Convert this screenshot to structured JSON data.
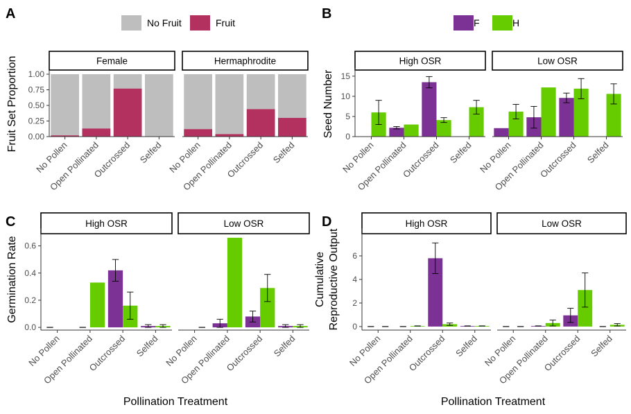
{
  "figure": {
    "panel_tags": [
      "A",
      "B",
      "C",
      "D"
    ],
    "xlabel": "Pollination Treatment"
  },
  "colors": {
    "no_fruit": "#bebebe",
    "fruit": "#b3315e",
    "F": "#7b3294",
    "H": "#66cc00",
    "axis": "#333333",
    "text": "#000000"
  },
  "chart_data": [
    {
      "id": "A",
      "type": "bar",
      "stacked": true,
      "ylabel": "Fruit Set Proportion",
      "ylim": [
        0,
        1
      ],
      "yticks": [
        "0.00",
        "0.25",
        "0.50",
        "0.75",
        "1.00"
      ],
      "ytick_values": [
        0,
        0.25,
        0.5,
        0.75,
        1
      ],
      "legend": {
        "position": "top",
        "entries": [
          {
            "label": "No Fruit",
            "color": "#bebebe"
          },
          {
            "label": "Fruit",
            "color": "#b3315e"
          }
        ]
      },
      "categories": [
        "No Pollen",
        "Open Pollinated",
        "Outcrossed",
        "Selfed"
      ],
      "facets": [
        {
          "label": "Female",
          "fruit": [
            0.02,
            0.13,
            0.77,
            0.0
          ]
        },
        {
          "label": "Hermaphrodite",
          "fruit": [
            0.12,
            0.04,
            0.44,
            0.3
          ]
        }
      ]
    },
    {
      "id": "B",
      "type": "bar",
      "ylabel": "Seed Number",
      "ylim": [
        0,
        16
      ],
      "yticks": [
        "0",
        "5",
        "10",
        "15"
      ],
      "ytick_values": [
        0,
        5,
        10,
        15
      ],
      "legend": {
        "position": "top",
        "entries": [
          {
            "label": "F",
            "color": "#7b3294"
          },
          {
            "label": "H",
            "color": "#66cc00"
          }
        ]
      },
      "categories": [
        "No Pollen",
        "Open Pollinated",
        "Outcrossed",
        "Selfed"
      ],
      "facets": [
        {
          "label": "High OSR",
          "series": [
            {
              "name": "F",
              "values": [
                null,
                2.2,
                13.5,
                null
              ],
              "err": [
                null,
                0.3,
                1.4,
                null
              ]
            },
            {
              "name": "H",
              "values": [
                6.0,
                3.0,
                4.1,
                7.3
              ],
              "err": [
                3.0,
                null,
                0.6,
                1.7
              ]
            }
          ]
        },
        {
          "label": "Low OSR",
          "series": [
            {
              "name": "F",
              "values": [
                2.1,
                4.8,
                9.6,
                null
              ],
              "err": [
                null,
                2.7,
                1.2,
                null
              ]
            },
            {
              "name": "H",
              "values": [
                6.2,
                12.2,
                11.9,
                10.6
              ],
              "err": [
                1.8,
                null,
                2.5,
                2.5
              ]
            }
          ]
        }
      ]
    },
    {
      "id": "C",
      "type": "bar",
      "ylabel": "Germination Rate",
      "ylim": [
        -0.02,
        0.7
      ],
      "yticks": [
        "0.0",
        "0.2",
        "0.4",
        "0.6"
      ],
      "ytick_values": [
        0,
        0.2,
        0.4,
        0.6
      ],
      "categories": [
        "No Pollen",
        "Open Pollinated",
        "Outcrossed",
        "Selfed"
      ],
      "facets": [
        {
          "label": "High OSR",
          "series": [
            {
              "name": "F",
              "values": [
                0,
                0,
                0.42,
                0.01
              ],
              "err": [
                0,
                0,
                0.08,
                0.01
              ]
            },
            {
              "name": "H",
              "values": [
                0,
                0.33,
                0.16,
                0.01
              ],
              "err": [
                null,
                null,
                0.1,
                0.01
              ]
            }
          ]
        },
        {
          "label": "Low OSR",
          "series": [
            {
              "name": "F",
              "values": [
                0,
                0.03,
                0.08,
                0.01
              ],
              "err": [
                null,
                0.03,
                0.04,
                0.01
              ]
            },
            {
              "name": "H",
              "values": [
                0,
                0.66,
                0.29,
                0.01
              ],
              "err": [
                0,
                null,
                0.1,
                0.01
              ]
            }
          ]
        }
      ]
    },
    {
      "id": "D",
      "type": "bar",
      "ylabel": "Cumulative\nReproductive Output",
      "ylim": [
        -0.3,
        8
      ],
      "yticks": [
        "0",
        "2",
        "4",
        "6"
      ],
      "ytick_values": [
        0,
        2,
        4,
        6
      ],
      "categories": [
        "No Pollen",
        "Open Pollinated",
        "Outcrossed",
        "Selfed"
      ],
      "facets": [
        {
          "label": "High OSR",
          "series": [
            {
              "name": "F",
              "values": [
                0,
                0,
                5.8,
                0.05
              ],
              "err": [
                0,
                0,
                1.3,
                0
              ]
            },
            {
              "name": "H",
              "values": [
                0,
                0.05,
                0.2,
                0.05
              ],
              "err": [
                0,
                0,
                0.1,
                0
              ]
            }
          ]
        },
        {
          "label": "Low OSR",
          "series": [
            {
              "name": "F",
              "values": [
                0,
                0.05,
                0.95,
                0
              ],
              "err": [
                0,
                0,
                0.6,
                0
              ]
            },
            {
              "name": "H",
              "values": [
                0,
                0.3,
                3.1,
                0.15
              ],
              "err": [
                0,
                0.25,
                1.45,
                0.1
              ]
            }
          ]
        }
      ]
    }
  ]
}
